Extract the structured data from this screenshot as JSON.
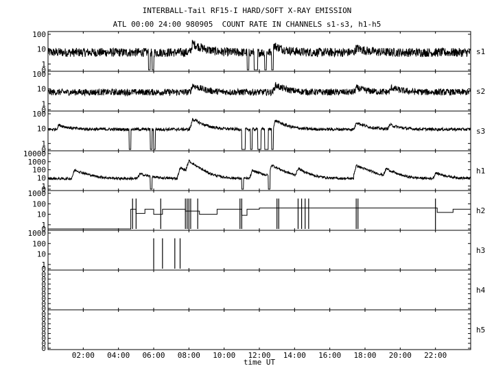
{
  "header": {
    "title": "INTERBALL-Tail RF15-I HARD/SOFT X-RAY EMISSION",
    "subtitle": "ATL 00:00 24:00 980905  COUNT RATE IN CHANNELS s1-s3, h1-h5"
  },
  "chart_data": {
    "type": "line",
    "x_range_hours": [
      0,
      24
    ],
    "x_ticks": [
      "02:00",
      "04:00",
      "06:00",
      "08:00",
      "10:00",
      "12:00",
      "14:00",
      "16:00",
      "18:00",
      "20:00",
      "22:00"
    ],
    "x_tick_hours": [
      2,
      4,
      6,
      8,
      10,
      12,
      14,
      16,
      18,
      20,
      22
    ],
    "xlabel": "time UT",
    "y_scale": "log",
    "panels": [
      {
        "name": "s1",
        "y_ticks": [
          "100",
          "10",
          "1",
          "0"
        ],
        "y_tick_values": [
          100,
          10,
          1,
          0
        ],
        "ylim_decades": [
          -0.4,
          2
        ],
        "baseline": 6,
        "noise_spread": 0.3,
        "enhancements": [
          [
            8.2,
            4
          ],
          [
            12.8,
            3
          ],
          [
            17.5,
            2
          ]
        ],
        "dropouts": [
          [
            5.7,
            5.8
          ],
          [
            5.9,
            6.0
          ],
          [
            11.3,
            11.4
          ],
          [
            11.7,
            11.9
          ],
          [
            12.3,
            12.4
          ],
          [
            12.7,
            12.8
          ]
        ]
      },
      {
        "name": "s2",
        "y_ticks": [
          "100",
          "10",
          "1",
          "0"
        ],
        "y_tick_values": [
          100,
          10,
          1,
          0
        ],
        "ylim_decades": [
          -0.4,
          2
        ],
        "baseline": 6,
        "noise_spread": 0.22,
        "enhancements": [
          [
            8.2,
            3
          ],
          [
            12.9,
            3
          ],
          [
            17.5,
            2
          ],
          [
            19.5,
            2
          ]
        ],
        "dropouts": []
      },
      {
        "name": "s3",
        "y_ticks": [
          "100",
          "10",
          "1",
          "0"
        ],
        "y_tick_values": [
          100,
          10,
          1,
          0
        ],
        "ylim_decades": [
          -0.4,
          2
        ],
        "baseline": 9,
        "noise_spread": 0.1,
        "enhancements": [
          [
            0.6,
            2
          ],
          [
            8.2,
            5
          ],
          [
            12.9,
            4
          ],
          [
            17.5,
            3
          ],
          [
            19.4,
            2
          ]
        ],
        "dropouts": [
          [
            4.6,
            4.7
          ],
          [
            5.8,
            5.9
          ],
          [
            6.0,
            6.1
          ],
          [
            11.0,
            11.2
          ],
          [
            11.5,
            11.6
          ],
          [
            11.9,
            12.1
          ],
          [
            12.3,
            12.5
          ],
          [
            12.7,
            12.8
          ]
        ]
      },
      {
        "name": "h1",
        "y_ticks": [
          "10000",
          "1000",
          "100",
          "10",
          "1",
          "0"
        ],
        "y_tick_values": [
          10000,
          1000,
          100,
          10,
          1,
          0
        ],
        "ylim_decades": [
          -0.4,
          4
        ],
        "baseline": 8,
        "noise_spread": 0.15,
        "enhancements": [
          [
            1.5,
            12
          ],
          [
            5.2,
            4
          ],
          [
            7.5,
            20
          ],
          [
            8.0,
            20
          ],
          [
            11.6,
            10
          ],
          [
            12.7,
            25
          ],
          [
            14.2,
            8
          ],
          [
            17.5,
            40
          ],
          [
            19.2,
            8
          ],
          [
            22.0,
            5
          ]
        ],
        "dropouts": [
          [
            5.8,
            5.9
          ],
          [
            11.0,
            11.1
          ],
          [
            12.5,
            12.6
          ]
        ]
      },
      {
        "name": "h2",
        "y_ticks": [
          "1000",
          "100",
          "10",
          "1",
          "0"
        ],
        "y_tick_values": [
          1000,
          100,
          10,
          1,
          0
        ],
        "ylim_decades": [
          -0.4,
          3
        ],
        "step_segments": [
          [
            0,
            4.7,
            0
          ],
          [
            4.7,
            5.0,
            30
          ],
          [
            5.0,
            5.5,
            12
          ],
          [
            5.5,
            6.0,
            30
          ],
          [
            6.0,
            6.5,
            10
          ],
          [
            6.5,
            7.8,
            30
          ],
          [
            7.8,
            8.6,
            20
          ],
          [
            8.6,
            9.6,
            10
          ],
          [
            9.6,
            11.0,
            30
          ],
          [
            11.0,
            11.3,
            8
          ],
          [
            11.3,
            12.0,
            30
          ],
          [
            12.0,
            14.3,
            40
          ],
          [
            14.3,
            22.1,
            40
          ],
          [
            22.1,
            23.0,
            15
          ],
          [
            23.0,
            24.0,
            30
          ]
        ],
        "spikes": [
          4.8,
          5.0,
          6.4,
          7.8,
          7.9,
          8.0,
          8.1,
          8.5,
          10.9,
          11.0,
          13.0,
          13.1,
          14.2,
          14.4,
          14.6,
          14.8,
          17.5,
          17.6,
          22.0
        ]
      },
      {
        "name": "h3",
        "y_ticks": [
          "1000",
          "100",
          "10",
          "1",
          "0"
        ],
        "y_tick_values": [
          1000,
          100,
          10,
          1,
          0
        ],
        "ylim_decades": [
          -0.4,
          3
        ],
        "spikes": [
          6.0,
          6.5,
          7.2,
          7.5
        ]
      },
      {
        "name": "h4",
        "y_ticks": [
          "0",
          "0",
          "0",
          "0",
          "0",
          "0",
          "0",
          "0"
        ],
        "y_tick_values": [
          0,
          0,
          0,
          0,
          0,
          0,
          0,
          0
        ]
      },
      {
        "name": "h5",
        "y_ticks": [
          "0",
          "0",
          "0",
          "0",
          "0",
          "0",
          "0",
          "0"
        ],
        "y_tick_values": [
          0,
          0,
          0,
          0,
          0,
          0,
          0,
          0
        ]
      }
    ]
  }
}
